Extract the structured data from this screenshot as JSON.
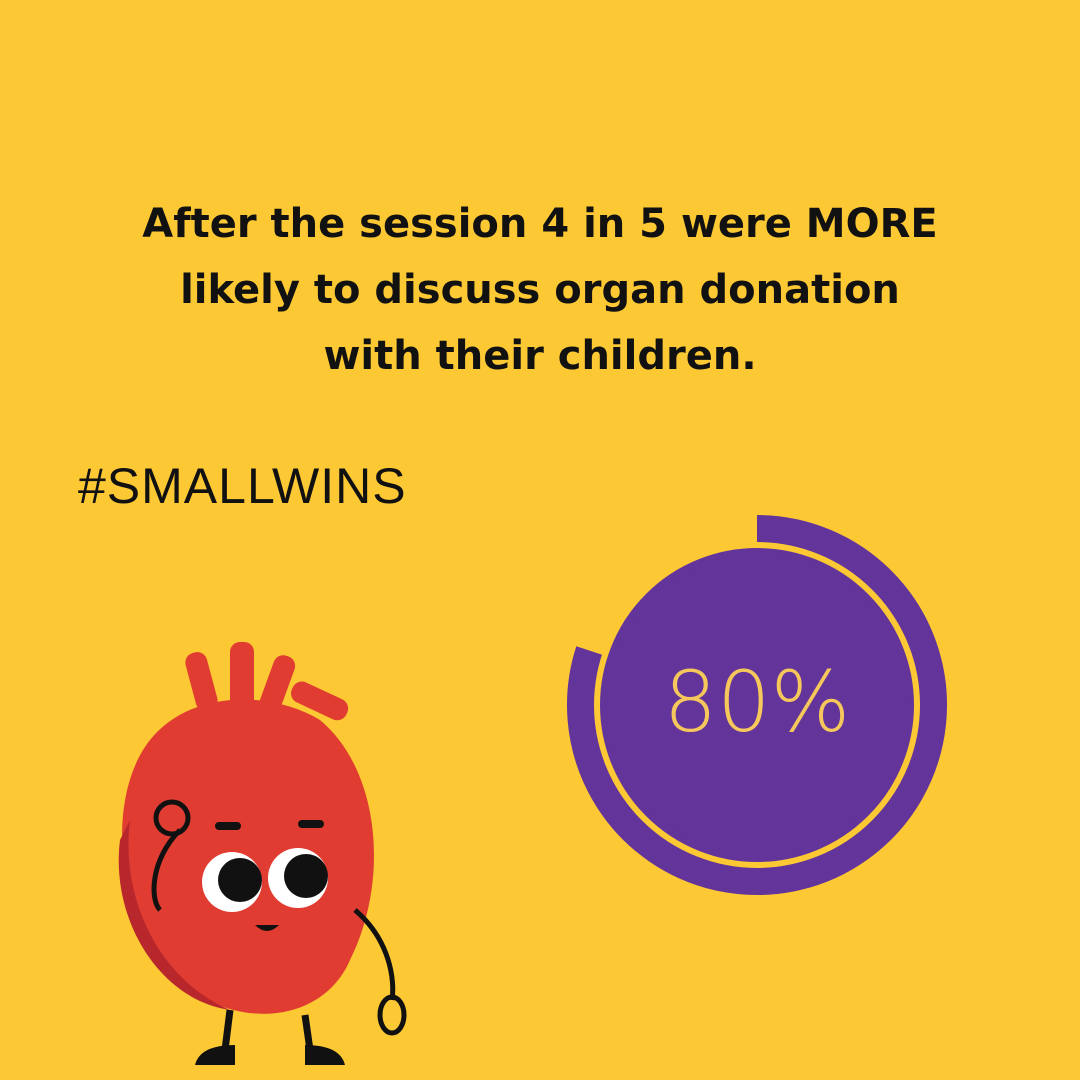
{
  "headline": {
    "lines": [
      "After the session 4 in 5 were MORE",
      "likely to discuss organ donation",
      "with their children."
    ]
  },
  "hashtag": "#SMALLWINS",
  "stat": {
    "value": 80,
    "label": "80%"
  }
}
